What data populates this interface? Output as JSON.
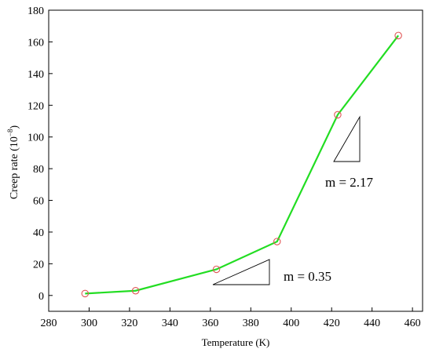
{
  "chart_data": {
    "type": "line",
    "xlabel": "Temperature (K)",
    "ylabel_main": "Creep rate (10",
    "ylabel_exp": "−8",
    "ylabel_close": ")",
    "xlim": [
      280,
      465
    ],
    "ylim": [
      -10,
      180
    ],
    "xticks": [
      280,
      300,
      320,
      340,
      360,
      380,
      400,
      420,
      440,
      460
    ],
    "yticks": [
      0,
      20,
      40,
      60,
      80,
      100,
      120,
      140,
      160,
      180
    ],
    "grid": false,
    "series": [
      {
        "x": [
          298,
          323,
          363,
          393,
          423,
          453
        ],
        "y": [
          1.2,
          3,
          16.5,
          34,
          114,
          164
        ],
        "line_color": "#22dd22",
        "marker": "open-circle",
        "marker_color": "#e05555"
      }
    ],
    "annotations": [
      {
        "text": "m = 0.35"
      },
      {
        "text": "m = 2.17"
      }
    ]
  }
}
